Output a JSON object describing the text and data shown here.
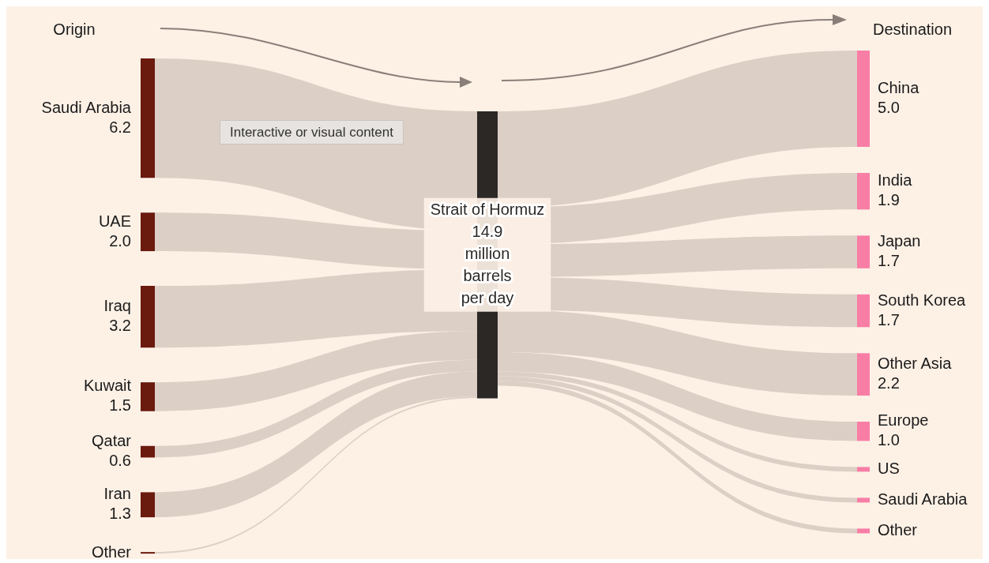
{
  "chart_data": {
    "type": "other",
    "color": "#dccfc5",
    "ylabel": "million barrels per day",
    "data_labels": true,
    "categories": [
      "Saudi Arabia",
      "UAE",
      "Iraq",
      "Kuwait",
      "Qatar",
      "Iran",
      "Other",
      "Strait of Hormuz",
      "China",
      "India",
      "Japan",
      "South Korea",
      "Other Asia",
      "Europe",
      "US",
      "Saudi Arabia",
      "Other"
    ],
    "series": [
      {
        "color": "#6b1a0e",
        "values": [
          6.2,
          2.0,
          3.2,
          1.5,
          0.6,
          1.3,
          null,
          null,
          null,
          null,
          null,
          null,
          null,
          null,
          null,
          null,
          null
        ],
        "value_labels": [
          "6.2",
          "2.0",
          "3.2",
          "1.5",
          "0.6",
          "1.3",
          null,
          null,
          null,
          null,
          null,
          null,
          null,
          null,
          null,
          null,
          null
        ]
      },
      {
        "color": "#2b2826",
        "values": [
          null,
          null,
          null,
          null,
          null,
          null,
          null,
          14.9,
          null,
          null,
          null,
          null,
          null,
          null,
          null,
          null,
          null
        ],
        "value_labels": [
          null,
          null,
          null,
          null,
          null,
          null,
          null,
          "14.9",
          null,
          null,
          null,
          null,
          null,
          null,
          null,
          null,
          null
        ]
      },
      {
        "color": "#f87ea6",
        "values": [
          null,
          null,
          null,
          null,
          null,
          null,
          null,
          null,
          5.0,
          1.9,
          1.7,
          1.7,
          2.2,
          1.0,
          null,
          null,
          null
        ],
        "value_labels": [
          null,
          null,
          null,
          null,
          null,
          null,
          null,
          null,
          "5.0",
          "1.9",
          "1.7",
          "1.7",
          "2.2",
          "1.0",
          null,
          null,
          null
        ]
      }
    ],
    "annotations": [
      "Origin",
      "Destination",
      "Interactive or visual content"
    ]
  }
}
